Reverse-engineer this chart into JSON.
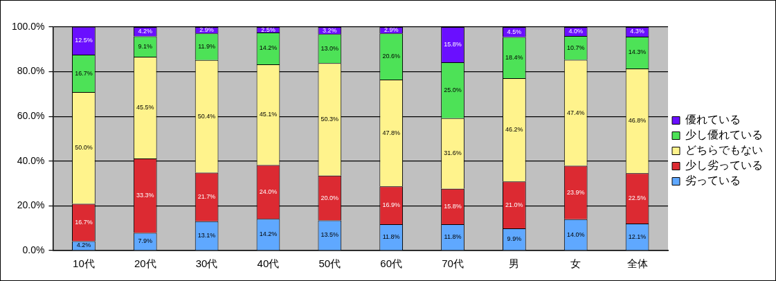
{
  "chart_data": {
    "type": "bar",
    "stacked": true,
    "categories": [
      "10代",
      "20代",
      "30代",
      "40代",
      "50代",
      "60代",
      "70代",
      "男",
      "女",
      "全体"
    ],
    "series": [
      {
        "name": "劣っている",
        "color": "#5fa8ff",
        "values": [
          4.2,
          7.9,
          13.1,
          14.2,
          13.5,
          11.8,
          11.8,
          9.9,
          14.0,
          12.1
        ],
        "value_labels": [
          "4.2%",
          "7.9%",
          "13.1%",
          "14.2%",
          "13.5%",
          "11.8%",
          "11.8%",
          "9.9%",
          "14.0%",
          "12.1%"
        ]
      },
      {
        "name": "少し劣っている",
        "color": "#dc2a32",
        "values": [
          16.7,
          33.3,
          21.7,
          24.0,
          20.0,
          16.9,
          15.8,
          21.0,
          23.9,
          22.5
        ],
        "value_labels": [
          "16.7%",
          "33.3%",
          "21.7%",
          "24.0%",
          "20.0%",
          "16.9%",
          "15.8%",
          "21.0%",
          "23.9%",
          "22.5%"
        ]
      },
      {
        "name": "どちらでもない",
        "color": "#fff38c",
        "values": [
          50.0,
          45.5,
          50.4,
          45.1,
          50.3,
          47.8,
          31.6,
          46.2,
          47.4,
          46.8
        ],
        "value_labels": [
          "50.0%",
          "45.5%",
          "50.4%",
          "45.1%",
          "50.3%",
          "47.8%",
          "31.6%",
          "46.2%",
          "47.4%",
          "46.8%"
        ]
      },
      {
        "name": "少し優れている",
        "color": "#4de257",
        "values": [
          16.7,
          9.1,
          11.9,
          14.2,
          13.0,
          20.6,
          25.0,
          18.4,
          10.7,
          14.3
        ],
        "value_labels": [
          "16.7%",
          "9.1%",
          "11.9%",
          "14.2%",
          "13.0%",
          "20.6%",
          "25.0%",
          "18.4%",
          "10.7%",
          "14.3%"
        ]
      },
      {
        "name": "優れている",
        "color": "#6a0fff",
        "values": [
          12.5,
          4.2,
          2.9,
          2.5,
          3.2,
          2.9,
          15.8,
          4.5,
          4.0,
          4.3
        ],
        "value_labels": [
          "12.5%",
          "4.2%",
          "2.9%",
          "2.5%",
          "3.2%",
          "2.9%",
          "15.8%",
          "4.5%",
          "4.0%",
          "4.3%"
        ]
      }
    ],
    "ylim": [
      0,
      100
    ],
    "yticks": [
      {
        "value": 0,
        "label": "0.0%"
      },
      {
        "value": 20,
        "label": "20.0%"
      },
      {
        "value": 40,
        "label": "40.0%"
      },
      {
        "value": 60,
        "label": "60.0%"
      },
      {
        "value": 80,
        "label": "80.0%"
      },
      {
        "value": 100,
        "label": "100.0%"
      }
    ],
    "grid": "y",
    "legend": "right"
  }
}
